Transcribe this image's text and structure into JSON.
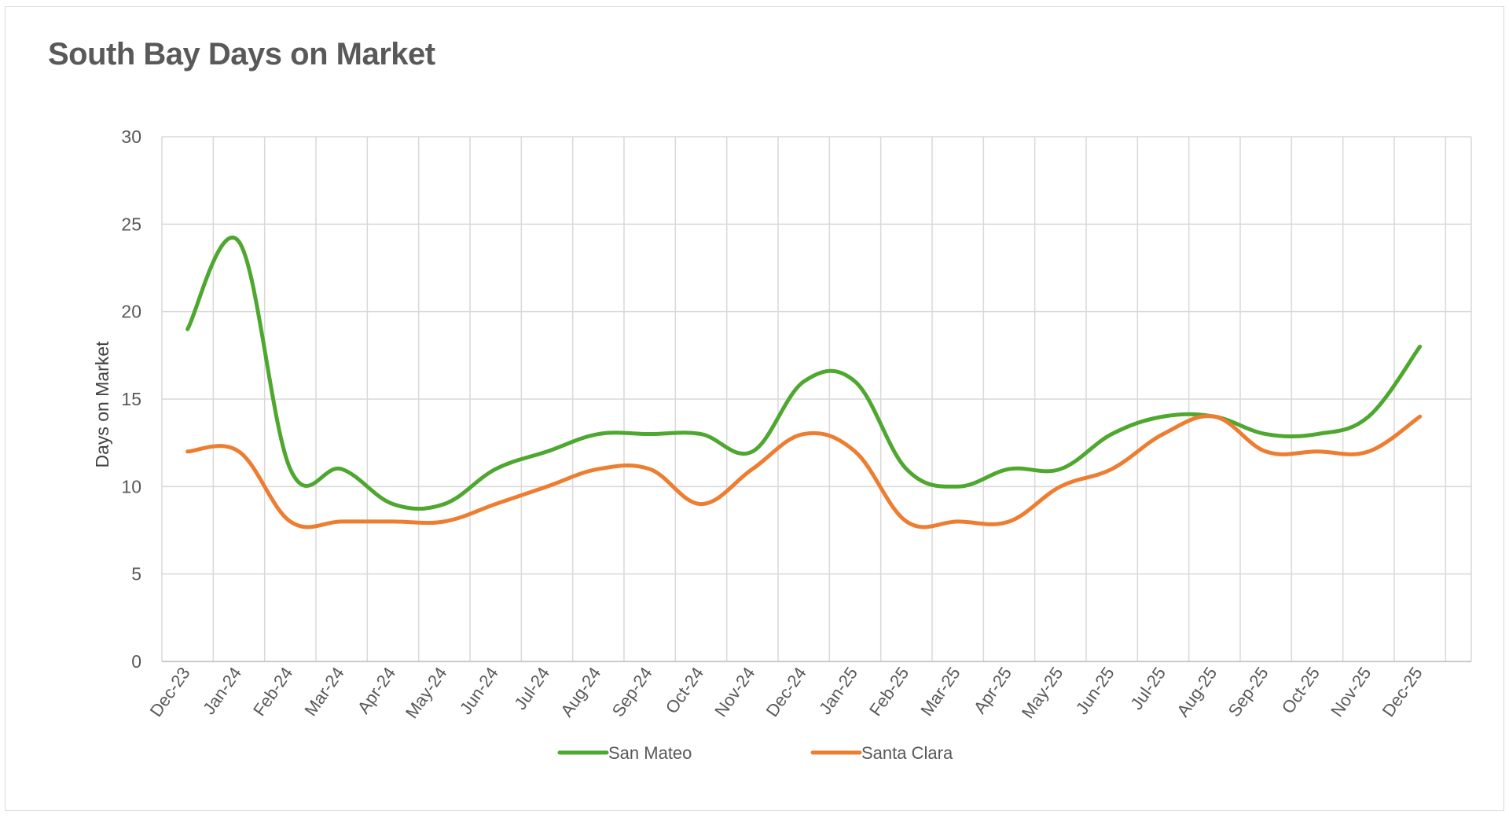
{
  "chart_data": {
    "type": "line",
    "title": "South Bay Days on Market",
    "xlabel": "",
    "ylabel": "Days on Market",
    "ylim": [
      0,
      30
    ],
    "yticks": [
      "0",
      "5",
      "10",
      "15",
      "20",
      "25",
      "30"
    ],
    "categories": [
      "Dec-23",
      "Jan-24",
      "Feb-24",
      "Mar-24",
      "Apr-24",
      "May-24",
      "Jun-24",
      "Jul-24",
      "Aug-24",
      "Sep-24",
      "Oct-24",
      "Nov-24",
      "Dec-24",
      "Jan-25",
      "Feb-25",
      "Mar-25",
      "Apr-25",
      "May-25",
      "Jun-25",
      "Jul-25",
      "Aug-25",
      "Sep-25",
      "Oct-25",
      "Nov-25",
      "Dec-25"
    ],
    "grid": true,
    "legend": "bottom",
    "series": [
      {
        "name": "San Mateo",
        "color": "#4ea72e",
        "values": [
          19,
          24,
          11,
          11,
          9,
          9,
          11,
          12,
          13,
          13,
          13,
          12,
          16,
          16,
          11,
          10,
          11,
          11,
          13,
          14,
          14,
          13,
          13,
          14,
          18
        ]
      },
      {
        "name": "Santa Clara",
        "color": "#ed7d31",
        "values": [
          12,
          12,
          8,
          8,
          8,
          8,
          9,
          10,
          11,
          11,
          9,
          11,
          13,
          12,
          8,
          8,
          8,
          10,
          11,
          13,
          14,
          12,
          12,
          12,
          14
        ]
      }
    ]
  }
}
